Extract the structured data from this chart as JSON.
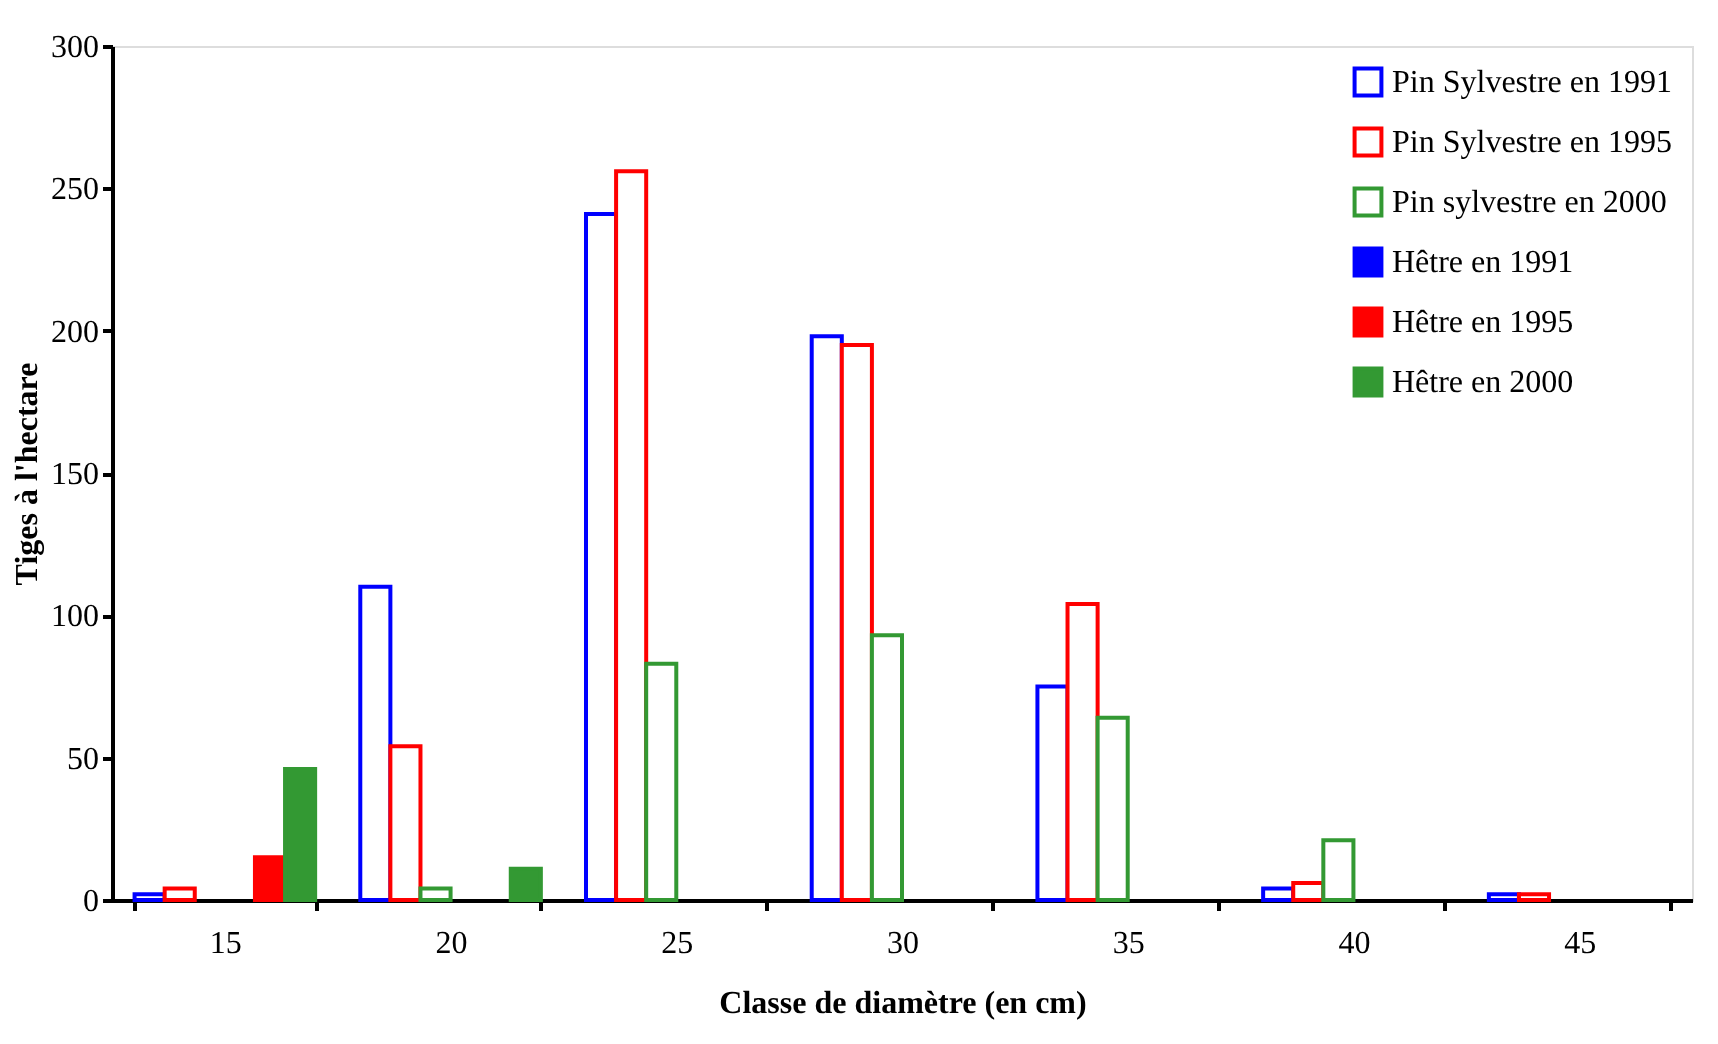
{
  "chart_data": {
    "type": "bar",
    "xlabel": "Classe de diamètre (en cm)",
    "ylabel": "Tiges à l'hectare",
    "categories": [
      "15",
      "20",
      "25",
      "30",
      "35",
      "40",
      "45"
    ],
    "series": [
      {
        "name": "Pin Sylvestre en 1991",
        "color": "#0000ff",
        "values": [
          2,
          110,
          241,
          198,
          75,
          4,
          2
        ]
      },
      {
        "name": "Pin Sylvestre en 1995",
        "color": "#ff0000",
        "values": [
          4,
          54,
          256,
          195,
          104,
          6,
          2
        ]
      },
      {
        "name": "Pin sylvestre en 2000",
        "color": "#339933",
        "values": [
          null,
          4,
          83,
          93,
          64,
          21,
          null
        ]
      },
      {
        "name": "Hêtre en 1991",
        "color": "#0000ff",
        "values": [
          null,
          null,
          null,
          null,
          null,
          null,
          null
        ]
      },
      {
        "name": "Hêtre en 1995",
        "color": "#ff0000",
        "values": [
          15,
          null,
          null,
          null,
          null,
          null,
          null
        ]
      },
      {
        "name": "Hêtre en 2000",
        "color": "#339933",
        "values": [
          46,
          11,
          null,
          null,
          null,
          null,
          null
        ]
      }
    ],
    "ylim": [
      0,
      300
    ],
    "yticks": [
      0,
      50,
      100,
      150,
      200,
      250,
      300
    ],
    "grid": false,
    "legend": "top right"
  }
}
